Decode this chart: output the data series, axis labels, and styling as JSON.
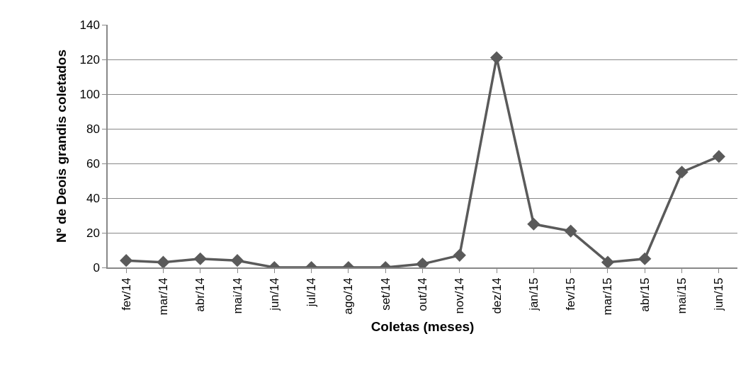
{
  "chart_data": {
    "type": "line",
    "xlabel": "Coletas (meses)",
    "ylabel": "Nº de Deois grandis coletados",
    "categories": [
      "fev/14",
      "mar/14",
      "abr/14",
      "mai/14",
      "jun/14",
      "jul/14",
      "ago/14",
      "set/14",
      "out/14",
      "nov/14",
      "dez/14",
      "jan/15",
      "fev/15",
      "mar/15",
      "abr/15",
      "mai/15",
      "jun/15"
    ],
    "series": [
      {
        "color": "#5a5a5a",
        "values": [
          4,
          3,
          5,
          4,
          0,
          0,
          0,
          0,
          2,
          7,
          121,
          25,
          21,
          3,
          5,
          55,
          64
        ]
      }
    ],
    "ylim": [
      0,
      140
    ],
    "yticks": [
      0,
      20,
      40,
      60,
      80,
      100,
      120,
      140
    ],
    "grid": "y",
    "marker": "diamond",
    "line_style": "solid"
  }
}
